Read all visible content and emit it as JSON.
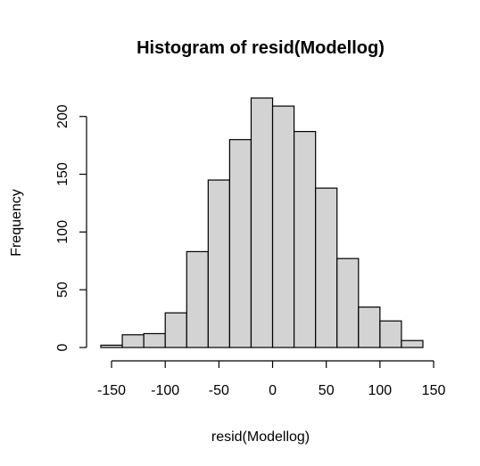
{
  "chart_data": {
    "type": "histogram",
    "title": "Histogram of resid(Modellog)",
    "xlabel": "resid(Modellog)",
    "ylabel": "Frequency",
    "bin_edges": [
      -160,
      -140,
      -120,
      -100,
      -80,
      -60,
      -40,
      -20,
      0,
      20,
      40,
      60,
      80,
      100,
      120,
      140
    ],
    "values": [
      2,
      11,
      12,
      30,
      83,
      145,
      180,
      216,
      209,
      187,
      138,
      77,
      35,
      23,
      6
    ],
    "xlim": [
      -160,
      140
    ],
    "ylim": [
      0,
      216
    ],
    "x_ticks": [
      -150,
      -100,
      -50,
      0,
      50,
      100,
      150
    ],
    "x_tick_labels": [
      "-150",
      "-100",
      "-50",
      "0",
      "50",
      "100",
      "150"
    ],
    "y_ticks": [
      0,
      50,
      100,
      150,
      200
    ],
    "y_tick_labels": [
      "0",
      "50",
      "100",
      "150",
      "200"
    ],
    "bar_fill": "#d3d3d3",
    "bar_stroke": "#000000",
    "grid": false,
    "legend": "none"
  }
}
